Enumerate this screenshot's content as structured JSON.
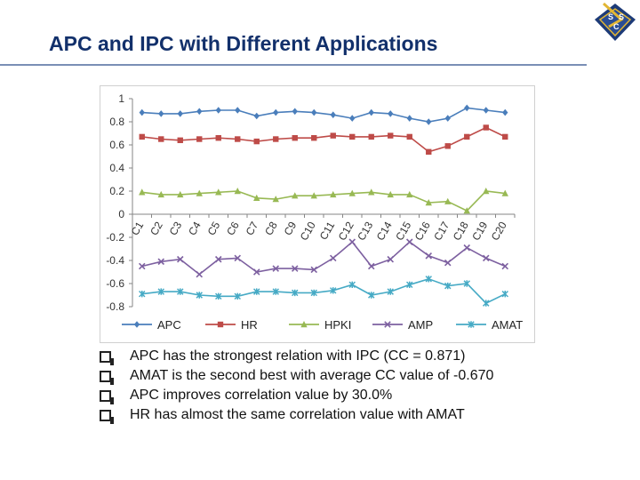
{
  "slide": {
    "title": "APC and IPC with Different Applications",
    "logo_letters": [
      "S",
      "S",
      "C"
    ],
    "bullets": [
      "APC has the strongest relation with IPC (CC = 0.871)",
      "AMAT is the second best with average CC value of -0.670",
      "APC improves correlation value by 30.0%",
      "HR has almost the same correlation value with AMAT"
    ]
  },
  "chart_data": {
    "type": "line",
    "categories": [
      "C1",
      "C2",
      "C3",
      "C4",
      "C5",
      "C6",
      "C7",
      "C8",
      "C9",
      "C10",
      "C11",
      "C12",
      "C13",
      "C14",
      "C15",
      "C16",
      "C17",
      "C18",
      "C19",
      "C20"
    ],
    "y_ticks": [
      "1",
      "0.8",
      "0.6",
      "0.4",
      "0.2",
      "0",
      "-0.2",
      "-0.4",
      "-0.6",
      "-0.8"
    ],
    "ylim": [
      -0.8,
      1
    ],
    "grid": false,
    "legend_position": "bottom",
    "series": [
      {
        "name": "APC",
        "color": "#4a7ebb",
        "marker": "diamond",
        "values": [
          0.88,
          0.87,
          0.87,
          0.89,
          0.9,
          0.9,
          0.85,
          0.88,
          0.89,
          0.88,
          0.86,
          0.83,
          0.88,
          0.87,
          0.83,
          0.8,
          0.83,
          0.92,
          0.9,
          0.88
        ]
      },
      {
        "name": "HR",
        "color": "#be4b48",
        "marker": "square",
        "values": [
          0.67,
          0.65,
          0.64,
          0.65,
          0.66,
          0.65,
          0.63,
          0.65,
          0.66,
          0.66,
          0.68,
          0.67,
          0.67,
          0.68,
          0.67,
          0.54,
          0.59,
          0.67,
          0.75,
          0.67
        ]
      },
      {
        "name": "HPKI",
        "color": "#98b954",
        "marker": "triangle",
        "values": [
          0.19,
          0.17,
          0.17,
          0.18,
          0.19,
          0.2,
          0.14,
          0.13,
          0.16,
          0.16,
          0.17,
          0.18,
          0.19,
          0.17,
          0.17,
          0.1,
          0.11,
          0.03,
          0.2,
          0.18
        ]
      },
      {
        "name": "AMP",
        "color": "#7d60a0",
        "marker": "x",
        "values": [
          -0.45,
          -0.41,
          -0.39,
          -0.52,
          -0.39,
          -0.38,
          -0.5,
          -0.47,
          -0.47,
          -0.48,
          -0.38,
          -0.24,
          -0.45,
          -0.39,
          -0.24,
          -0.36,
          -0.42,
          -0.29,
          -0.38,
          -0.45
        ]
      },
      {
        "name": "AMAT",
        "color": "#46aac5",
        "marker": "star",
        "values": [
          -0.69,
          -0.67,
          -0.67,
          -0.7,
          -0.71,
          -0.71,
          -0.67,
          -0.67,
          -0.68,
          -0.68,
          -0.66,
          -0.61,
          -0.7,
          -0.67,
          -0.61,
          -0.56,
          -0.62,
          -0.6,
          -0.77,
          -0.69
        ]
      }
    ]
  }
}
